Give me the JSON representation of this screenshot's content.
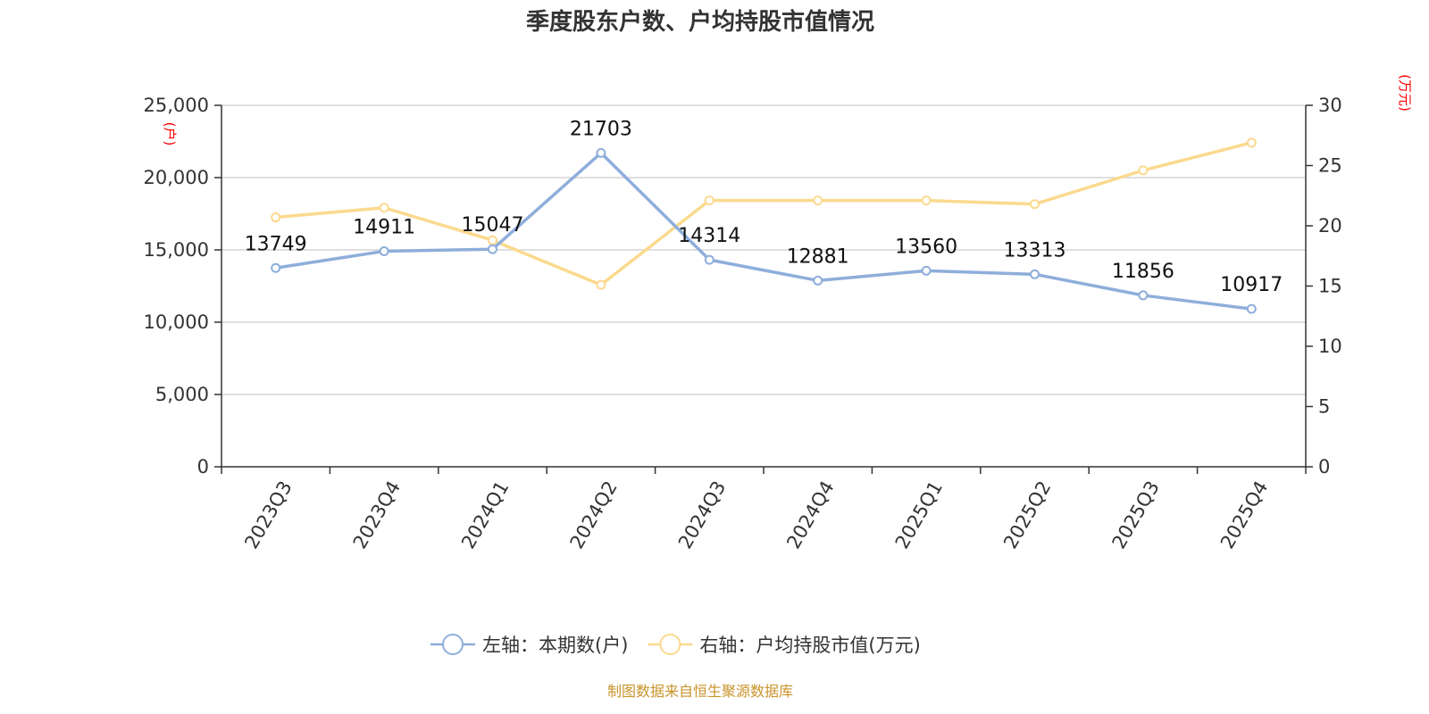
{
  "chart_data": {
    "type": "line",
    "title": "季度股东户数、户均持股市值情况",
    "categories": [
      "2023Q3",
      "2023Q4",
      "2024Q1",
      "2024Q2",
      "2024Q3",
      "2024Q4",
      "2025Q1",
      "2025Q2",
      "2025Q3",
      "2025Q4"
    ],
    "series": [
      {
        "name": "左轴：本期数(户)",
        "axis": "left",
        "color": "#8eaedb",
        "values": [
          13749,
          14911,
          15047,
          21703,
          14314,
          12881,
          13560,
          13313,
          11856,
          10917
        ],
        "labels": [
          "13749",
          "14911",
          "15047",
          "21703",
          "14314",
          "12881",
          "13560",
          "13313",
          "11856",
          "10917"
        ]
      },
      {
        "name": "右轴：户均持股市值(万元)",
        "axis": "right",
        "color": "#fbd98e",
        "values": [
          20.7,
          21.5,
          18.8,
          15.1,
          22.1,
          22.1,
          22.1,
          21.8,
          24.6,
          26.9
        ]
      }
    ],
    "left_axis": {
      "unit": "(户)",
      "ylim": [
        0,
        25000
      ],
      "ticks": [
        0,
        5000,
        10000,
        15000,
        20000,
        25000
      ],
      "tick_labels": [
        "0",
        "5,000",
        "10,000",
        "15,000",
        "20,000",
        "25,000"
      ]
    },
    "right_axis": {
      "unit": "(万元)",
      "ylim": [
        0,
        30
      ],
      "ticks": [
        0,
        5,
        10,
        15,
        20,
        25,
        30
      ],
      "tick_labels": [
        "0",
        "5",
        "10",
        "15",
        "20",
        "25",
        "30"
      ]
    },
    "grid": true,
    "legend_position": "bottom-center",
    "unit_color": "#ff0000",
    "source": "制图数据来自恒生聚源数据库",
    "source_color": "#c8932a"
  }
}
